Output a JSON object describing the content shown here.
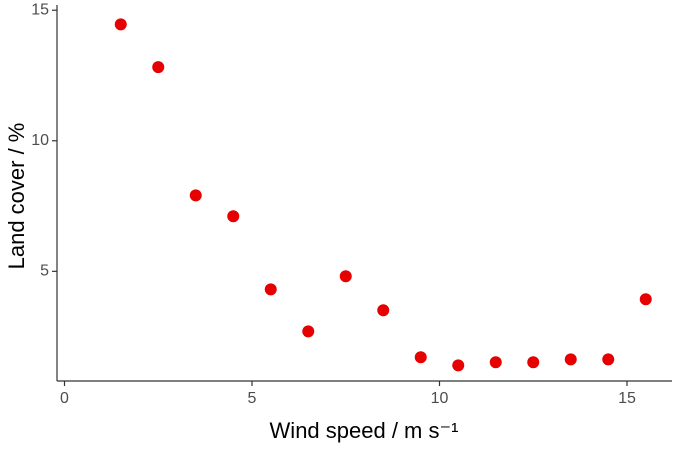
{
  "chart_data": {
    "type": "scatter",
    "x_label": "Wind speed / m s⁻¹",
    "y_label": "Land cover / %",
    "color": "#e60000",
    "x": [
      1.5,
      2.5,
      3.5,
      4.5,
      5.5,
      6.5,
      7.5,
      8.5,
      9.5,
      10.5,
      11.5,
      12.5,
      13.5,
      14.5,
      15.5
    ],
    "values": [
      14.46,
      12.82,
      7.91,
      7.11,
      4.31,
      2.7,
      4.81,
      3.51,
      1.71,
      1.4,
      1.52,
      1.52,
      1.63,
      1.63,
      3.93
    ],
    "xlim": [
      -0.2,
      16.2
    ],
    "xticks": [
      0,
      5,
      10,
      15
    ],
    "ylim": [
      0.8,
      15.2
    ],
    "yticks": [
      5,
      10,
      15
    ],
    "grid": false
  }
}
